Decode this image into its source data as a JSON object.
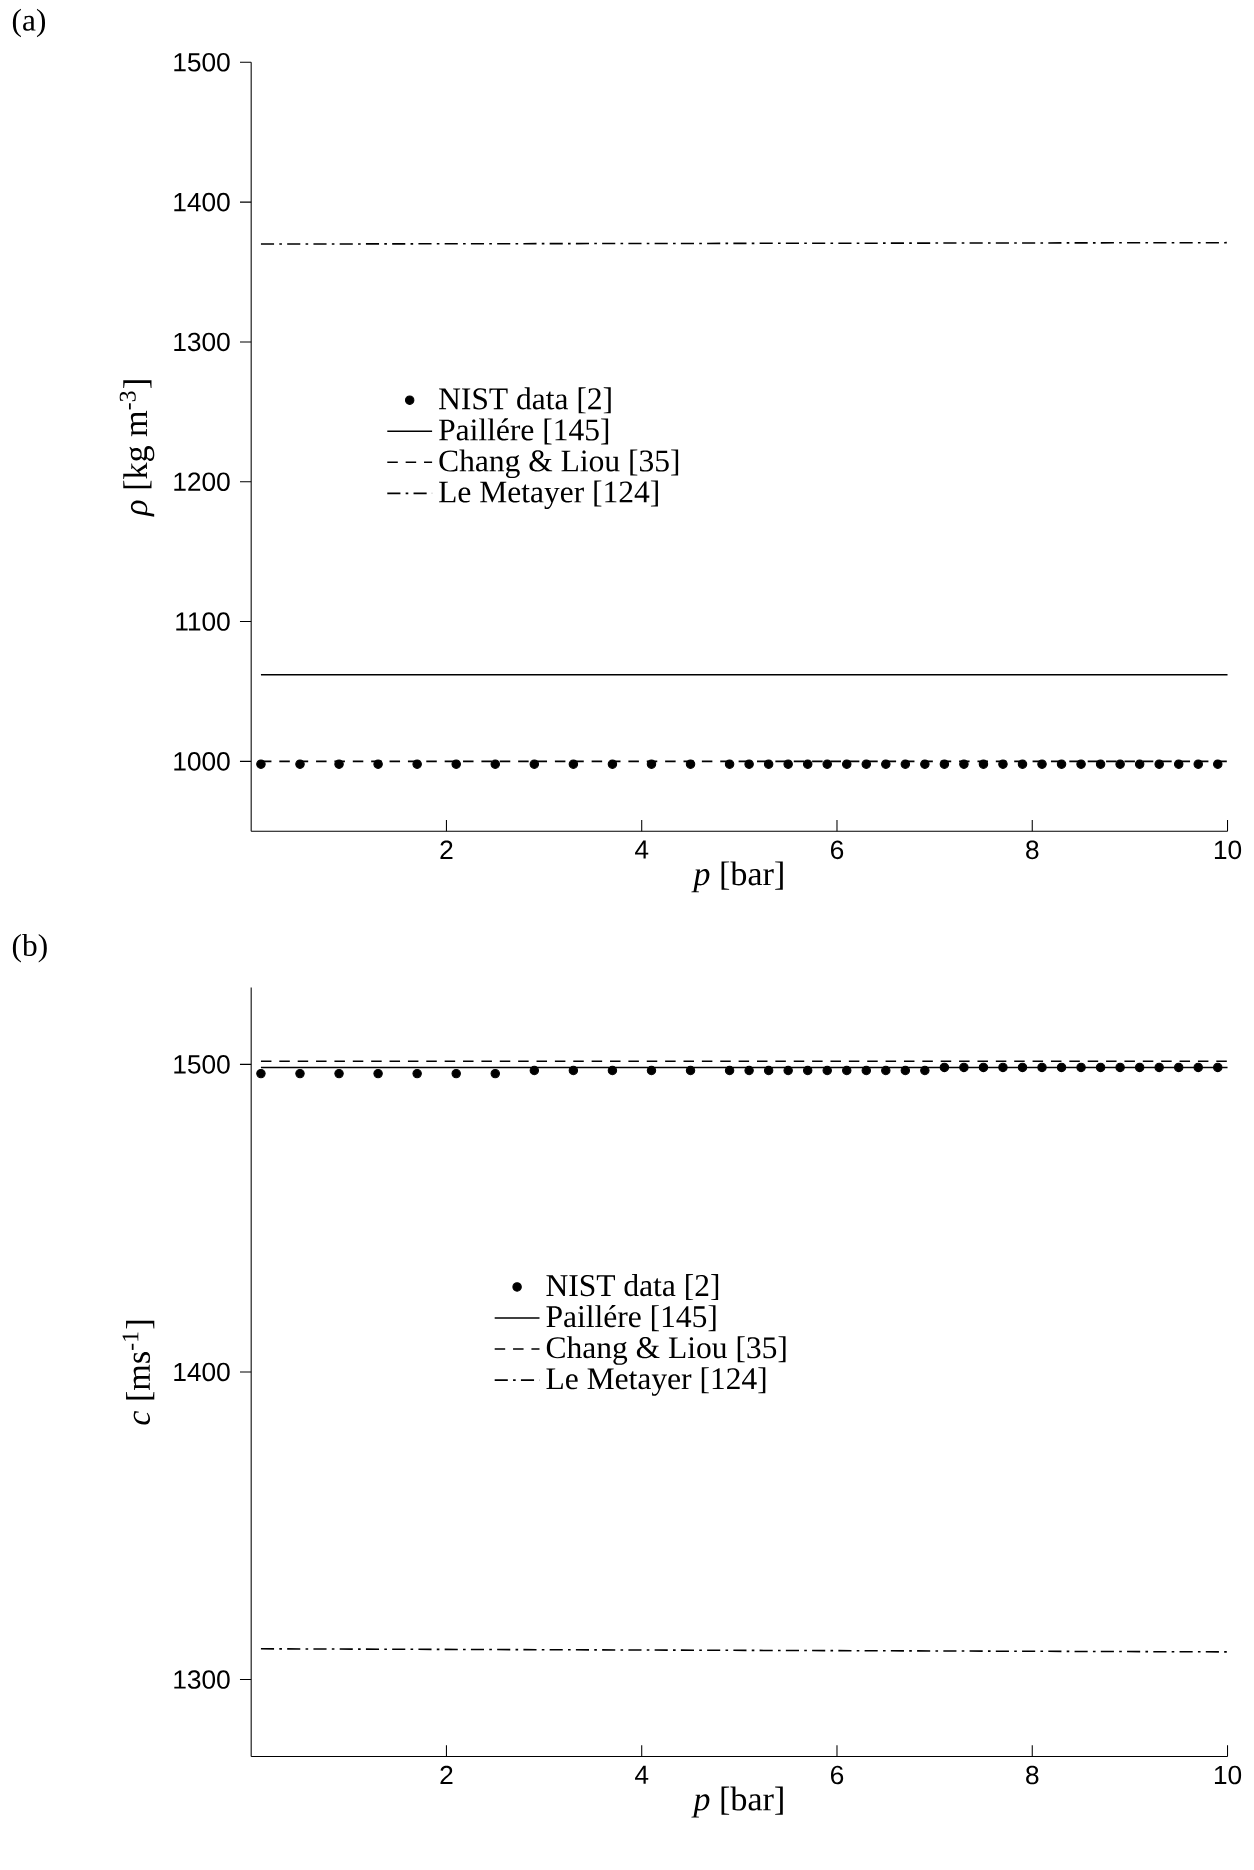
{
  "chart_data": [
    {
      "type": "line",
      "title": "(a)",
      "xlabel": "*p* [bar]",
      "ylabel": "*ρ* [kg m$^{-3}$]",
      "xlim": [
        0,
        10
      ],
      "ylim": [
        950,
        1500
      ],
      "xticks": [
        2,
        4,
        6,
        8,
        10
      ],
      "yticks": [
        1000,
        1100,
        1200,
        1300,
        1400,
        1500
      ],
      "legend": "left",
      "series": [
        {
          "name": "NIST data [2]",
          "type": "scatter",
          "color": "#000000",
          "x": [
            0.1,
            0.5,
            0.9,
            1.3,
            1.7,
            2.1,
            2.5,
            2.9,
            3.3,
            3.7,
            4.1,
            4.5,
            4.9,
            5.1,
            5.3,
            5.5,
            5.7,
            5.9,
            6.1,
            6.3,
            6.5,
            6.7,
            6.9,
            7.1,
            7.3,
            7.5,
            7.7,
            7.9,
            8.1,
            8.3,
            8.5,
            8.7,
            8.9,
            9.1,
            9.3,
            9.5,
            9.7,
            9.9
          ],
          "values": [
            998,
            998,
            998,
            998,
            998,
            998,
            998,
            998,
            998,
            998,
            998,
            998,
            998,
            998,
            998,
            998,
            998,
            998,
            998,
            998,
            998,
            998,
            998,
            998,
            998,
            998,
            998,
            998,
            998,
            998,
            998,
            998,
            998,
            998,
            998,
            998,
            998,
            998
          ]
        },
        {
          "name": "Paillére [145]",
          "line_style": "solid",
          "color": "#000000",
          "x": [
            0.1,
            10
          ],
          "values": [
            1062,
            1062
          ]
        },
        {
          "name": "Chang & Liou [35]",
          "line_style": "dashed",
          "color": "#000000",
          "x": [
            0.1,
            10
          ],
          "values": [
            1000,
            1000
          ]
        },
        {
          "name": "Le Metayer [124]",
          "line_style": "dashdot",
          "color": "#000000",
          "x": [
            0.1,
            10
          ],
          "values": [
            1370,
            1371
          ]
        }
      ]
    },
    {
      "type": "line",
      "title": "(b)",
      "xlabel": "*p* [bar]",
      "ylabel": "*c* [ms$^{-1}$]",
      "xlim": [
        0,
        10
      ],
      "ylim": [
        1275,
        1525
      ],
      "xticks": [
        2,
        4,
        6,
        8,
        10
      ],
      "yticks": [
        1300,
        1400,
        1500
      ],
      "legend": "center",
      "series": [
        {
          "name": "NIST data [2]",
          "type": "scatter",
          "color": "#000000",
          "x": [
            0.1,
            0.5,
            0.9,
            1.3,
            1.7,
            2.1,
            2.5,
            2.9,
            3.3,
            3.7,
            4.1,
            4.5,
            4.9,
            5.1,
            5.3,
            5.5,
            5.7,
            5.9,
            6.1,
            6.3,
            6.5,
            6.7,
            6.9,
            7.1,
            7.3,
            7.5,
            7.7,
            7.9,
            8.1,
            8.3,
            8.5,
            8.7,
            8.9,
            9.1,
            9.3,
            9.5,
            9.7,
            9.9
          ],
          "values": [
            1497,
            1497,
            1497,
            1497,
            1497,
            1497,
            1497,
            1498,
            1498,
            1498,
            1498,
            1498,
            1498,
            1498,
            1498,
            1498,
            1498,
            1498,
            1498,
            1498,
            1498,
            1498,
            1498,
            1499,
            1499,
            1499,
            1499,
            1499,
            1499,
            1499,
            1499,
            1499,
            1499,
            1499,
            1499,
            1499,
            1499,
            1499
          ]
        },
        {
          "name": "Paillére [145]",
          "line_style": "solid",
          "color": "#000000",
          "x": [
            0.1,
            10
          ],
          "values": [
            1499,
            1499
          ]
        },
        {
          "name": "Chang & Liou [35]",
          "line_style": "dashed",
          "color": "#000000",
          "x": [
            0.1,
            10
          ],
          "values": [
            1501,
            1501
          ]
        },
        {
          "name": "Le Metayer [124]",
          "line_style": "dashdot",
          "color": "#000000",
          "x": [
            0.1,
            10
          ],
          "values": [
            1310,
            1309
          ]
        }
      ]
    }
  ]
}
